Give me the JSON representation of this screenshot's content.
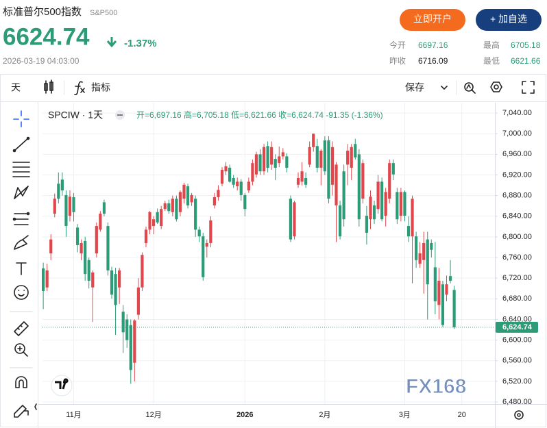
{
  "header": {
    "title": "标准普尔500指数",
    "code": "S&P500",
    "price": "6624.74",
    "change": "-1.37%",
    "time": "2026-03-19 04:03:00",
    "open_account": "立即开户",
    "add_watch": "+ 加自选",
    "stats": [
      {
        "label": "今开",
        "value": "6697.16"
      },
      {
        "label": "最高",
        "value": "6705.18"
      },
      {
        "label": "昨收",
        "value": "6716.09"
      },
      {
        "label": "最低",
        "value": "6621.66"
      }
    ]
  },
  "toolbar": {
    "interval": "天",
    "indicators": "指标",
    "save": "保存"
  },
  "chart_data": {
    "type": "candlestick",
    "symbol": "SPCIW · 1天",
    "ohlc_legend": "开=6,697.16 高=6,705.18 低=6,621.66 收=6,624.74 -91.35 (-1.36%)",
    "watermark": "FX168",
    "up_color": "#e0474c",
    "down_color": "#2b9c77",
    "grid": true,
    "open": [
      6739,
      6702,
      6768,
      6845,
      6903,
      6911,
      6881,
      6841,
      6877,
      6818,
      6768,
      6792,
      6755,
      6702,
      6768,
      6814,
      6867,
      6821,
      6735,
      6728,
      6702,
      6655,
      6640,
      6629,
      6556,
      6649,
      6702,
      6788,
      6814,
      6821,
      6848,
      6821,
      6854,
      6865,
      6848,
      6874,
      6848,
      6874,
      6898,
      6867,
      6874,
      6814,
      6801,
      6781,
      6788,
      6861,
      6877,
      6903,
      6927,
      6934,
      6914,
      6898,
      6907,
      6881,
      6890,
      6907,
      6921,
      6960,
      6927,
      6976,
      6940,
      6951,
      6943,
      6956,
      6956,
      6874,
      6801,
      6901,
      6907,
      6914,
      6940,
      6974,
      6976,
      6934,
      6987,
      6987,
      6901,
      6861,
      6861,
      6927,
      6940,
      6934,
      6980,
      6960,
      6874,
      6841,
      6834,
      6861,
      6854,
      6907,
      6841,
      6874,
      6943,
      6887,
      6841,
      6887,
      6821,
      6801,
      6801,
      6748,
      6755,
      6795,
      6788,
      6741,
      6668,
      6708,
      6688,
      6724,
      6697.16
    ],
    "high": [
      6750,
      6748,
      6805,
      6884,
      6925,
      6925,
      6890,
      6890,
      6885,
      6825,
      6795,
      6800,
      6760,
      6735,
      6828,
      6850,
      6872,
      6828,
      6742,
      6740,
      6740,
      6668,
      6650,
      6640,
      6640,
      6720,
      6770,
      6820,
      6850,
      6840,
      6855,
      6860,
      6870,
      6872,
      6880,
      6880,
      6890,
      6905,
      6903,
      6885,
      6880,
      6820,
      6808,
      6795,
      6840,
      6885,
      6900,
      6935,
      6945,
      6940,
      6920,
      6915,
      6912,
      6885,
      6915,
      6950,
      6965,
      6970,
      6980,
      6985,
      6985,
      6960,
      6975,
      6972,
      6962,
      6880,
      6870,
      6925,
      6945,
      6925,
      6985,
      7000,
      6990,
      6970,
      6995,
      6995,
      6985,
      6945,
      6870,
      6940,
      6980,
      6980,
      6990,
      6970,
      6950,
      6860,
      6890,
      6870,
      6920,
      6915,
      6895,
      6950,
      6950,
      6895,
      6895,
      6890,
      6840,
      6880,
      6810,
      6790,
      6810,
      6810,
      6795,
      6790,
      6740,
      6715,
      6725,
      6755,
      6705.18
    ],
    "low": [
      6660,
      6695,
      6755,
      6838,
      6865,
      6880,
      6800,
      6830,
      6830,
      6770,
      6755,
      6715,
      6700,
      6635,
      6760,
      6810,
      6840,
      6725,
      6680,
      6610,
      6670,
      6575,
      6585,
      6515,
      6520,
      6640,
      6695,
      6780,
      6805,
      6805,
      6825,
      6815,
      6850,
      6845,
      6840,
      6830,
      6840,
      6865,
      6855,
      6860,
      6800,
      6790,
      6715,
      6760,
      6780,
      6855,
      6870,
      6898,
      6920,
      6905,
      6895,
      6890,
      6870,
      6840,
      6885,
      6900,
      6915,
      6920,
      6920,
      6925,
      6930,
      6910,
      6935,
      6950,
      6925,
      6790,
      6795,
      6895,
      6900,
      6895,
      6935,
      6965,
      6925,
      6900,
      6920,
      6865,
      6880,
      6790,
      6795,
      6820,
      6900,
      6910,
      6950,
      6820,
      6865,
      6785,
      6815,
      6825,
      6845,
      6830,
      6820,
      6865,
      6910,
      6825,
      6830,
      6830,
      6790,
      6710,
      6740,
      6740,
      6690,
      6640,
      6760,
      6650,
      6640,
      6625,
      6675,
      6710,
      6621.66
    ],
    "close": [
      6695,
      6735,
      6795,
      6874,
      6874,
      6890,
      6821,
      6878,
      6848,
      6784,
      6788,
      6728,
      6715,
      6731,
      6821,
      6845,
      6845,
      6735,
      6688,
      6668,
      6735,
      6615,
      6600,
      6542,
      6638,
      6702,
      6765,
      6814,
      6848,
      6834,
      6828,
      6854,
      6865,
      6850,
      6874,
      6834,
      6887,
      6901,
      6861,
      6881,
      6814,
      6801,
      6722,
      6788,
      6832,
      6877,
      6891,
      6930,
      6937,
      6907,
      6901,
      6907,
      6881,
      6854,
      6907,
      6943,
      6960,
      6927,
      6974,
      6934,
      6974,
      6934,
      6956,
      6964,
      6934,
      6795,
      6867,
      6914,
      6927,
      6901,
      6974,
      7000,
      6934,
      6967,
      6927,
      6874,
      6974,
      6940,
      6801,
      6834,
      6967,
      6974,
      6954,
      6834,
      6943,
      6808,
      6878,
      6834,
      6907,
      6834,
      6887,
      6943,
      6921,
      6834,
      6887,
      6841,
      6801,
      6874,
      6755,
      6768,
      6788,
      6708,
      6775,
      6675,
      6715,
      6629,
      6708,
      6715,
      6624.74
    ],
    "last_price": {
      "value": 6624.74,
      "label": "6,624.74"
    },
    "xlim": [
      -0.2,
      118.7
    ],
    "xticks": [
      {
        "value": 8,
        "label": "11月"
      },
      {
        "value": 29,
        "label": "12月"
      },
      {
        "value": 53,
        "label": "2026"
      },
      {
        "value": 74,
        "label": "2月"
      },
      {
        "value": 95,
        "label": "3月"
      },
      {
        "value": 110,
        "label": "20"
      }
    ],
    "ylim": [
      6476,
      7060
    ],
    "yticks": [
      {
        "value": 6480,
        "label": "6,480.00"
      },
      {
        "value": 6520,
        "label": "6,520.00"
      },
      {
        "value": 6560,
        "label": "6,560.00"
      },
      {
        "value": 6600,
        "label": "6,600.00"
      },
      {
        "value": 6640,
        "label": "6,640.00"
      },
      {
        "value": 6680,
        "label": "6,680.00"
      },
      {
        "value": 6720,
        "label": "6,720.00"
      },
      {
        "value": 6760,
        "label": "6,760.00"
      },
      {
        "value": 6800,
        "label": "6,800.00"
      },
      {
        "value": 6840,
        "label": "6,840.00"
      },
      {
        "value": 6880,
        "label": "6,880.00"
      },
      {
        "value": 6920,
        "label": "6,920.00"
      },
      {
        "value": 6960,
        "label": "6,960.00"
      },
      {
        "value": 7000,
        "label": "7,000.00"
      },
      {
        "value": 7040,
        "label": "7,040.00"
      }
    ]
  }
}
